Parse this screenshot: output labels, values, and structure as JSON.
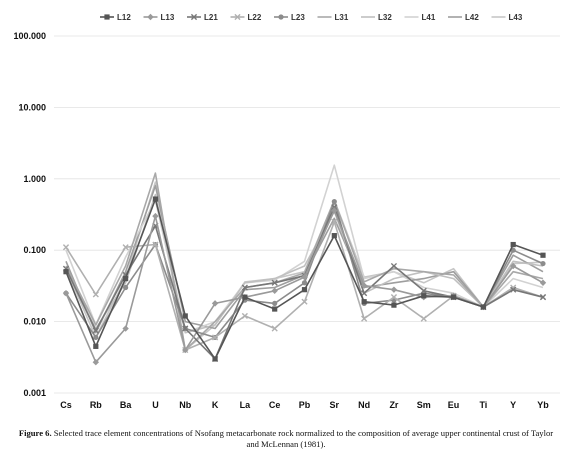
{
  "caption": {
    "label": "Figure 6.",
    "text": "Selected trace element concentrations of Nsofang metacarbonate rock normalized to the composition of average upper continental crust of Taylor and McLennan (1981)."
  },
  "chart_data": {
    "type": "line",
    "y_scale": "log",
    "ylim": [
      0.001,
      100
    ],
    "ytick_labels": [
      "100.000",
      "10.000",
      "1.000",
      "0.100",
      "0.010",
      "0.001"
    ],
    "categories": [
      "Cs",
      "Rb",
      "Ba",
      "U",
      "Nb",
      "K",
      "La",
      "Ce",
      "Pb",
      "Sr",
      "Nd",
      "Zr",
      "Sm",
      "Eu",
      "Ti",
      "Y",
      "Yb"
    ],
    "legend_position": "top",
    "grid": "horizontal",
    "series": [
      {
        "name": "L12",
        "color": "#555555",
        "marker": "square",
        "values": [
          0.05,
          0.0045,
          0.04,
          0.52,
          0.012,
          0.003,
          0.022,
          0.015,
          0.028,
          0.16,
          0.019,
          0.017,
          0.023,
          0.022,
          0.016,
          0.12,
          0.085
        ]
      },
      {
        "name": "L13",
        "color": "#9a9a9a",
        "marker": "diamond",
        "values": [
          0.025,
          0.0027,
          0.008,
          0.3,
          0.004,
          0.018,
          0.022,
          0.027,
          0.042,
          0.36,
          0.032,
          0.028,
          0.022,
          0.023,
          0.016,
          0.06,
          0.035
        ]
      },
      {
        "name": "L21",
        "color": "#777777",
        "marker": "x",
        "values": [
          0.055,
          0.0075,
          0.045,
          0.22,
          0.008,
          0.003,
          0.03,
          0.035,
          0.044,
          0.4,
          0.025,
          0.06,
          0.027,
          0.022,
          0.016,
          0.028,
          0.022
        ]
      },
      {
        "name": "L22",
        "color": "#b0b0b0",
        "marker": "x",
        "values": [
          0.11,
          0.024,
          0.11,
          0.12,
          0.004,
          0.006,
          0.012,
          0.008,
          0.019,
          0.25,
          0.011,
          0.022,
          0.011,
          0.023,
          0.016,
          0.03,
          0.022
        ]
      },
      {
        "name": "L23",
        "color": "#8c8c8c",
        "marker": "circle",
        "values": [
          0.025,
          0.006,
          0.03,
          0.12,
          0.008,
          0.006,
          0.02,
          0.018,
          0.035,
          0.48,
          0.018,
          0.02,
          0.025,
          0.022,
          0.016,
          0.1,
          0.065
        ]
      },
      {
        "name": "L31",
        "color": "#a8a8a8",
        "marker": "none",
        "values": [
          0.06,
          0.009,
          0.06,
          1.2,
          0.004,
          0.01,
          0.03,
          0.035,
          0.048,
          0.5,
          0.036,
          0.055,
          0.05,
          0.045,
          0.016,
          0.05,
          0.04
        ]
      },
      {
        "name": "L32",
        "color": "#c0c0c0",
        "marker": "none",
        "values": [
          0.05,
          0.008,
          0.035,
          0.6,
          0.007,
          0.009,
          0.035,
          0.04,
          0.06,
          0.35,
          0.025,
          0.04,
          0.05,
          0.04,
          0.016,
          0.07,
          0.06
        ]
      },
      {
        "name": "L41",
        "color": "#d2d2d2",
        "marker": "none",
        "values": [
          0.1,
          0.009,
          0.08,
          0.5,
          0.007,
          0.01,
          0.035,
          0.038,
          0.07,
          1.55,
          0.04,
          0.05,
          0.03,
          0.025,
          0.016,
          0.04,
          0.03
        ]
      },
      {
        "name": "L42",
        "color": "#9e9e9e",
        "marker": "none",
        "values": [
          0.07,
          0.007,
          0.05,
          0.8,
          0.01,
          0.008,
          0.028,
          0.03,
          0.045,
          0.28,
          0.03,
          0.035,
          0.04,
          0.05,
          0.016,
          0.085,
          0.05
        ]
      },
      {
        "name": "L43",
        "color": "#c6c6c6",
        "marker": "none",
        "values": [
          0.055,
          0.006,
          0.04,
          0.9,
          0.004,
          0.009,
          0.036,
          0.04,
          0.05,
          0.5,
          0.042,
          0.05,
          0.035,
          0.055,
          0.016,
          0.065,
          0.068
        ]
      }
    ]
  }
}
